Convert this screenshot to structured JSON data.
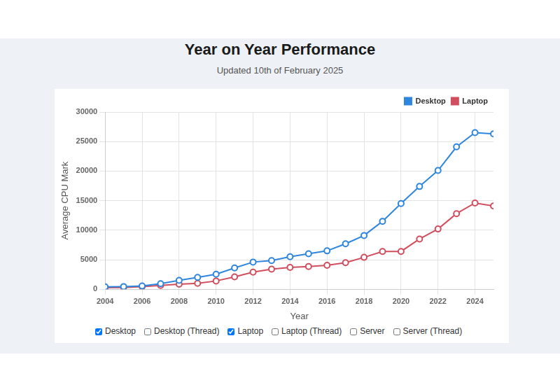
{
  "chart_data": {
    "type": "line",
    "title": "Year on Year Performance",
    "subtitle": "Updated 10th of February 2025",
    "xlabel": "Year",
    "ylabel": "Average CPU Mark",
    "x": [
      2004,
      2005,
      2006,
      2007,
      2008,
      2009,
      2010,
      2011,
      2012,
      2013,
      2014,
      2015,
      2016,
      2017,
      2018,
      2019,
      2020,
      2021,
      2022,
      2023,
      2024,
      2025
    ],
    "series": [
      {
        "name": "Desktop",
        "color": "#2f86de",
        "marker": "circle",
        "line_style": "solid",
        "values": [
          400,
          450,
          550,
          950,
          1500,
          2000,
          2550,
          3600,
          4600,
          4850,
          5500,
          6000,
          6500,
          7700,
          9100,
          11500,
          14500,
          17400,
          20100,
          24100,
          26500,
          26300
        ]
      },
      {
        "name": "Laptop",
        "color": "#d14e5e",
        "marker": "circle",
        "line_style": "solid",
        "values": [
          250,
          300,
          450,
          650,
          850,
          1000,
          1400,
          2100,
          2900,
          3400,
          3700,
          3850,
          4050,
          4500,
          5400,
          6400,
          6400,
          8500,
          10200,
          12800,
          14600,
          14100
        ]
      }
    ],
    "xlim": [
      2004,
      2025
    ],
    "xticks": [
      2004,
      2006,
      2008,
      2010,
      2012,
      2014,
      2016,
      2018,
      2020,
      2022,
      2024
    ],
    "ylim": [
      0,
      30000
    ],
    "yticks": [
      0,
      5000,
      10000,
      15000,
      20000,
      25000,
      30000
    ],
    "grid": true,
    "legend": "top-right"
  },
  "controls": [
    {
      "label": "Desktop",
      "checked": true
    },
    {
      "label": "Desktop (Thread)",
      "checked": false
    },
    {
      "label": "Laptop",
      "checked": true
    },
    {
      "label": "Laptop (Thread)",
      "checked": false
    },
    {
      "label": "Server",
      "checked": false
    },
    {
      "label": "Server (Thread)",
      "checked": false
    }
  ]
}
